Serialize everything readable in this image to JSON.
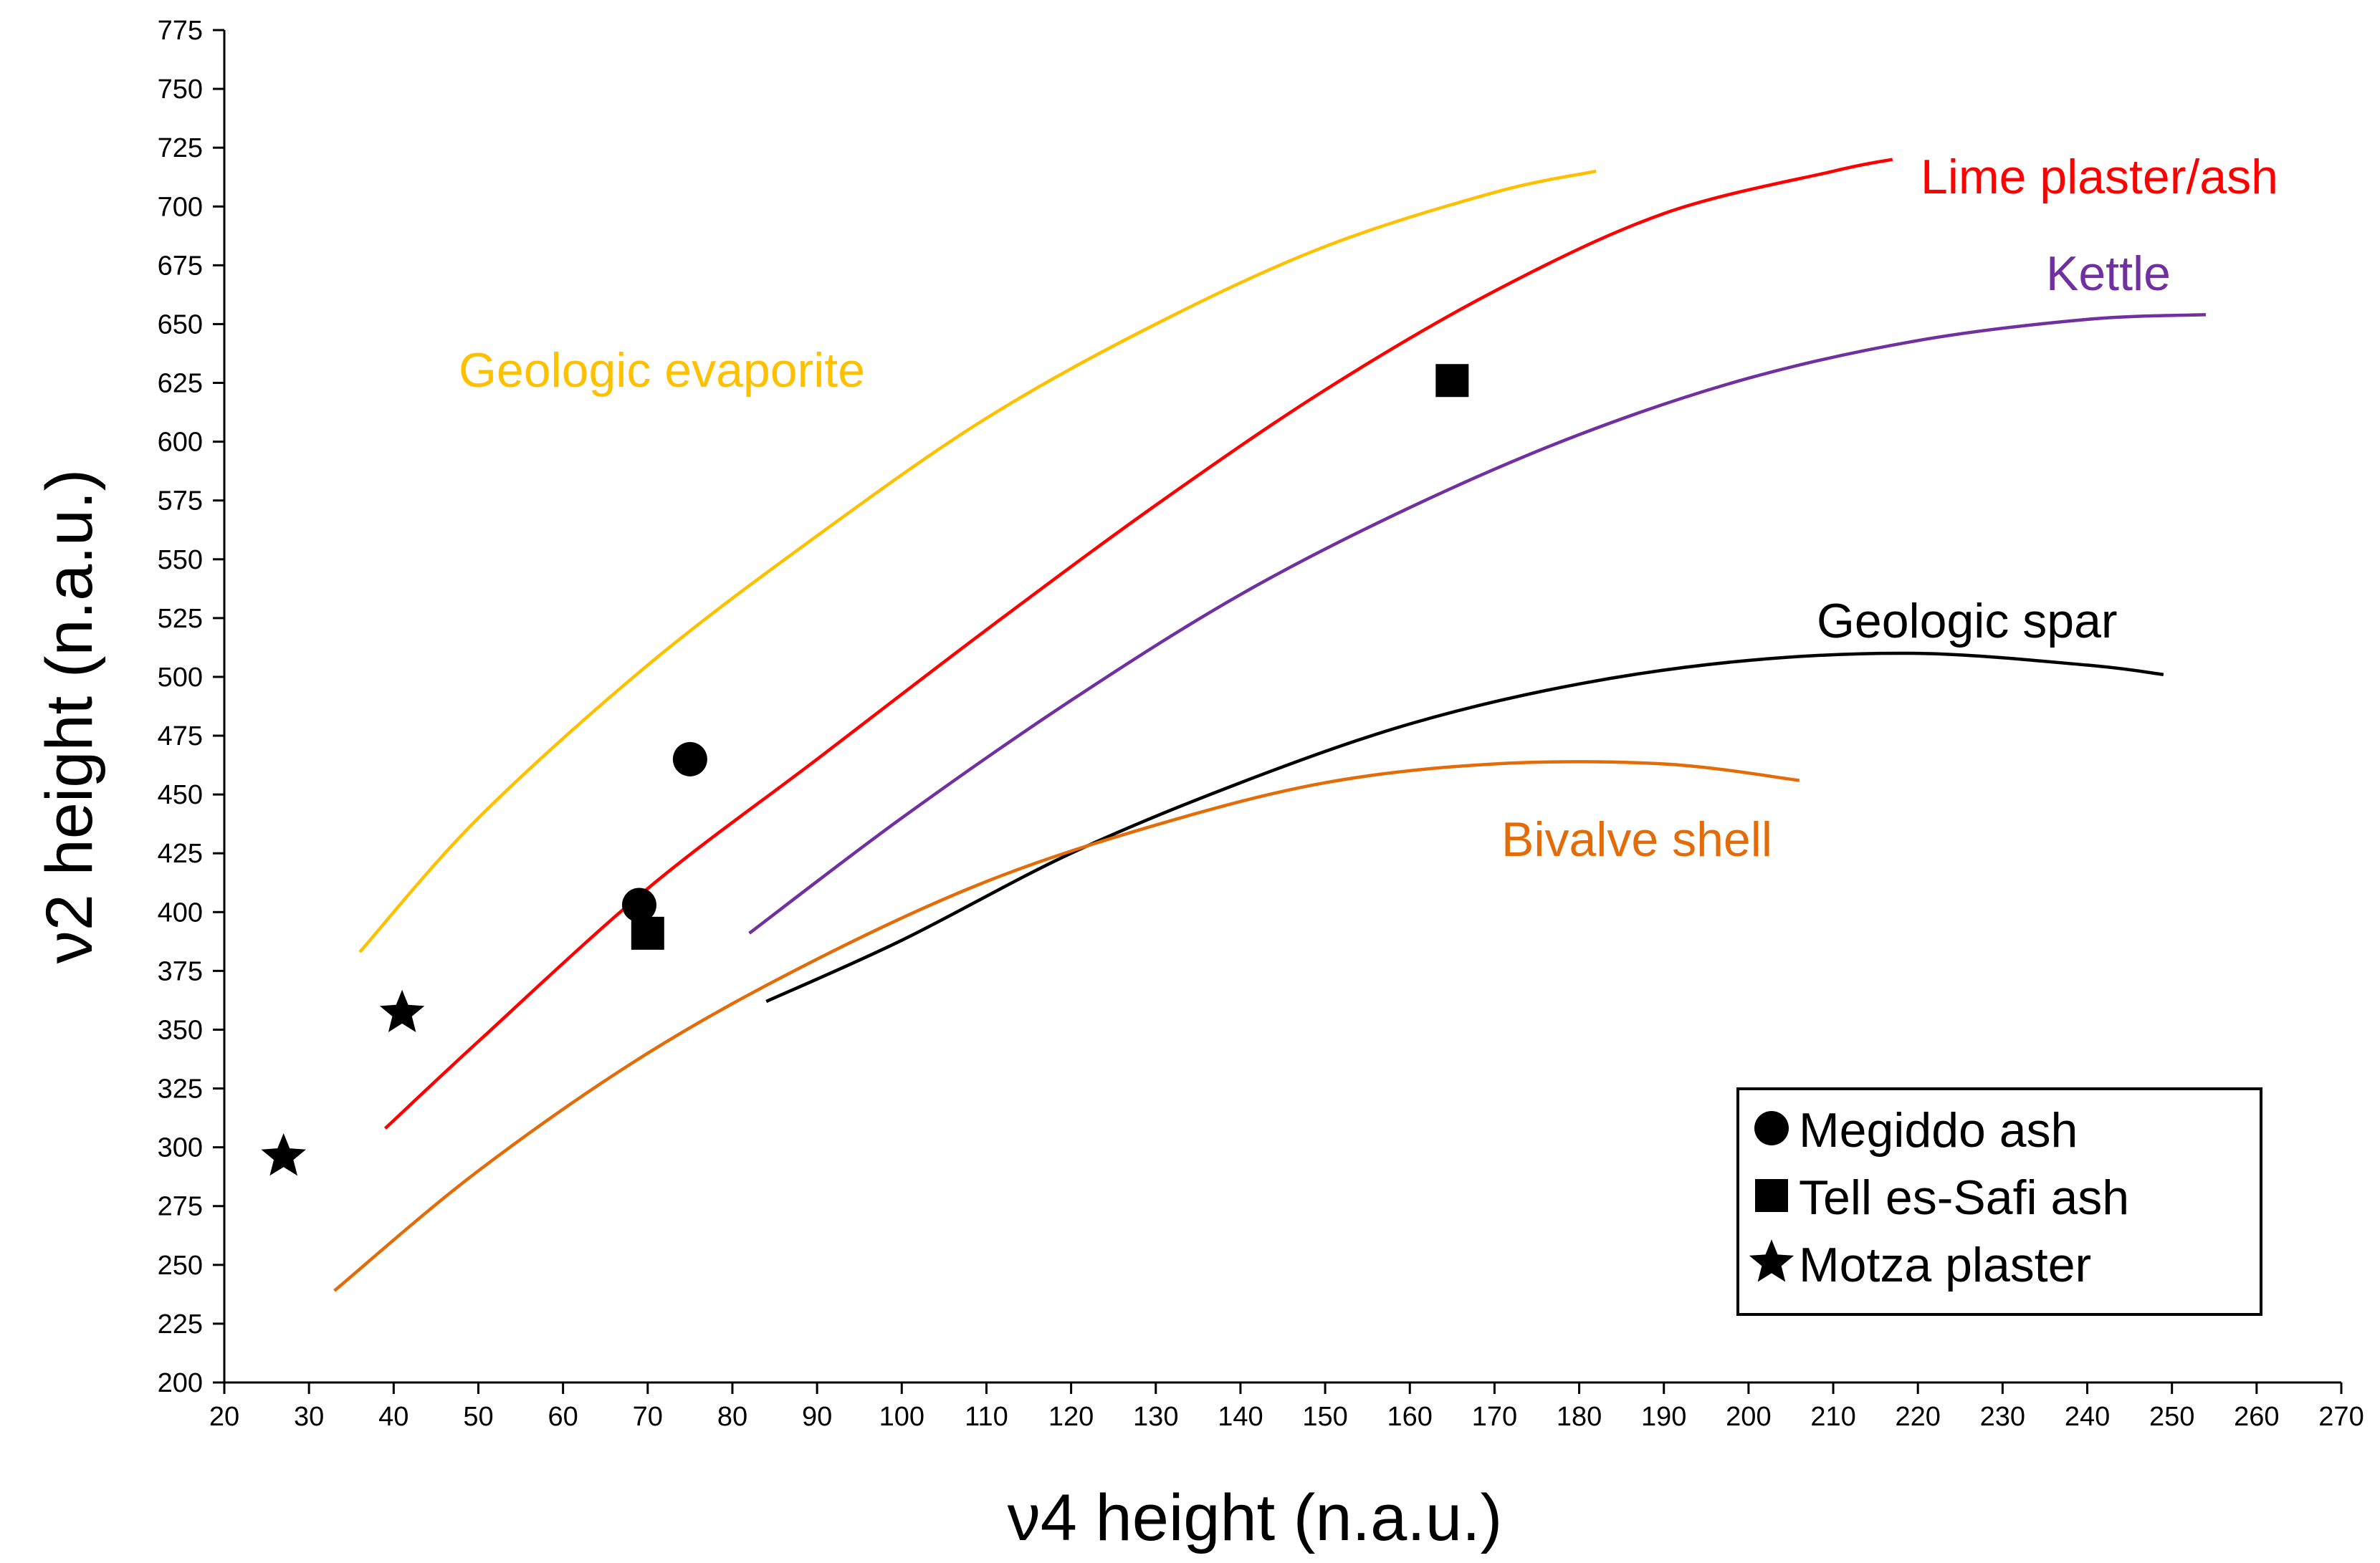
{
  "chart_data": {
    "type": "line",
    "xlabel": "ν4 height (n.a.u.)",
    "ylabel": "ν2 height (n.a.u.)",
    "xlim": [
      20,
      270
    ],
    "ylim": [
      200,
      775
    ],
    "xticks": [
      20,
      30,
      40,
      50,
      60,
      70,
      80,
      90,
      100,
      110,
      120,
      130,
      140,
      150,
      160,
      170,
      180,
      190,
      200,
      210,
      220,
      230,
      240,
      250,
      260,
      270
    ],
    "yticks": [
      200,
      225,
      250,
      275,
      300,
      325,
      350,
      375,
      400,
      425,
      450,
      475,
      500,
      525,
      550,
      575,
      600,
      625,
      650,
      675,
      700,
      725,
      750,
      775
    ],
    "grid": false,
    "series": [
      {
        "name": "Geologic evaporite",
        "color": "#FFC000",
        "kind": "curve",
        "x": [
          36,
          50,
          70,
          90,
          110,
          130,
          150,
          170,
          182
        ],
        "y": [
          383,
          440,
          505,
          560,
          610,
          650,
          683,
          706,
          715
        ]
      },
      {
        "name": "Lime plaster/ash",
        "color": "#FF0000",
        "kind": "curve",
        "x": [
          39,
          50,
          70,
          90,
          110,
          130,
          150,
          170,
          190,
          210,
          217
        ],
        "y": [
          308,
          345,
          410,
          465,
          520,
          573,
          622,
          664,
          697,
          715,
          720
        ]
      },
      {
        "name": "Kettle",
        "color": "#7030A0",
        "kind": "curve",
        "x": [
          82,
          100,
          120,
          140,
          160,
          180,
          200,
          220,
          240,
          254
        ],
        "y": [
          391,
          440,
          490,
          535,
          572,
          603,
          627,
          643,
          652,
          654
        ]
      },
      {
        "name": "Geologic spar",
        "color": "#000000",
        "kind": "curve",
        "x": [
          84,
          100,
          120,
          140,
          160,
          180,
          200,
          220,
          240,
          249
        ],
        "y": [
          362,
          388,
          425,
          455,
          480,
          497,
          507,
          510,
          505,
          501
        ]
      },
      {
        "name": "Bivalve shell",
        "color": "#E36C09",
        "kind": "curve",
        "x": [
          33,
          50,
          70,
          90,
          110,
          130,
          150,
          170,
          190,
          206
        ],
        "y": [
          239,
          290,
          340,
          380,
          413,
          437,
          455,
          463,
          463,
          456
        ]
      },
      {
        "name": "Megiddo ash",
        "color": "#000000",
        "kind": "points",
        "marker": "circle",
        "x": [
          69,
          75
        ],
        "y": [
          403,
          465
        ]
      },
      {
        "name": "Tell es-Safi ash",
        "color": "#000000",
        "kind": "points",
        "marker": "square",
        "x": [
          70,
          165
        ],
        "y": [
          391,
          626
        ]
      },
      {
        "name": "Motza plaster",
        "color": "#000000",
        "kind": "points",
        "marker": "star",
        "x": [
          27,
          41
        ],
        "y": [
          296,
          357
        ]
      }
    ],
    "annotations": [
      {
        "text": "Geologic evaporite",
        "color": "#FFC000"
      },
      {
        "text": "Lime plaster/ash",
        "color": "#FF0000"
      },
      {
        "text": "Kettle",
        "color": "#7030A0"
      },
      {
        "text": "Geologic spar",
        "color": "#000000"
      },
      {
        "text": "Bivalve shell",
        "color": "#E36C09"
      }
    ],
    "legend": {
      "position": "bottom-right",
      "entries": [
        {
          "label": "Megiddo ash",
          "marker": "circle"
        },
        {
          "label": "Tell es-Safi ash",
          "marker": "square"
        },
        {
          "label": "Motza plaster",
          "marker": "star"
        }
      ]
    }
  }
}
